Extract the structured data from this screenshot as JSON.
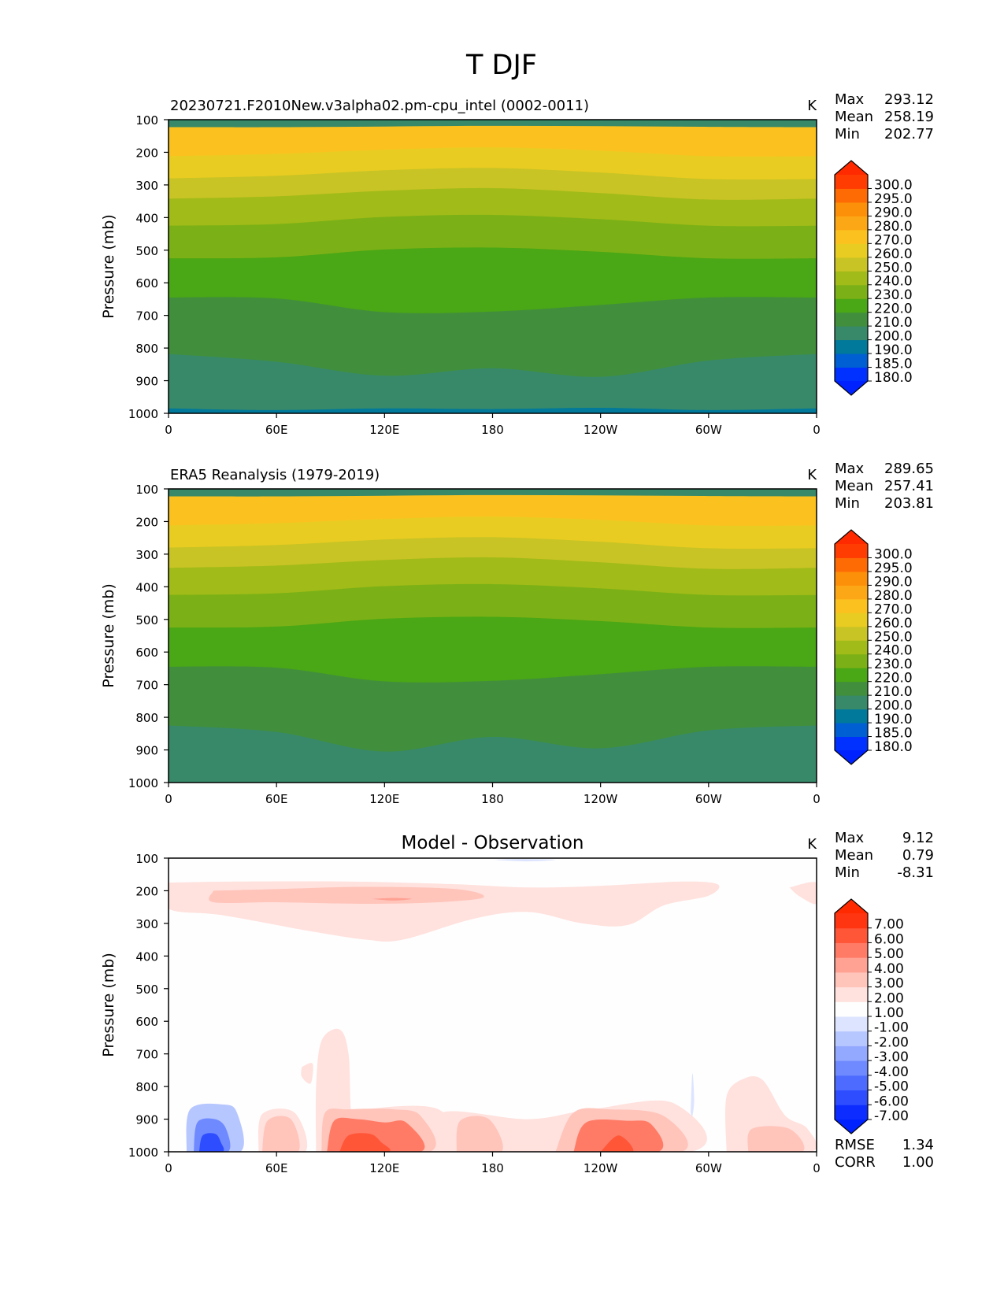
{
  "figure_title": "T DJF",
  "colors": {
    "abs_levels": [
      "#0031ff",
      "#005fd2",
      "#00799a",
      "#37896a",
      "#418f3c",
      "#4aa715",
      "#7bb116",
      "#a1bb18",
      "#c8c425",
      "#e9cc21",
      "#fbc21f",
      "#fca716",
      "#fd9009",
      "#fe6b05",
      "#ff3d02"
    ],
    "abs_over": "#ff2a00",
    "abs_under": "#0022ff",
    "diff_levels": [
      "#0d2cff",
      "#2d4dff",
      "#4d6bff",
      "#6f8aff",
      "#93a8ff",
      "#b6c6ff",
      "#dce4ff",
      "#fefefe",
      "#ffe1dd",
      "#ffc4ba",
      "#ffa193",
      "#ff7b66",
      "#ff5638",
      "#ff3410"
    ],
    "diff_over": "#ff2a00",
    "diff_under": "#0022ff"
  },
  "chart_data": [
    {
      "type": "contourf",
      "title": "20230721.F2010New.v3alpha02.pm-cpu_intel (0002-0011)",
      "units": "K",
      "stats": [
        {
          "label": "Max",
          "value": "293.12"
        },
        {
          "label": "Mean",
          "value": "258.19"
        },
        {
          "label": "Min",
          "value": "202.77"
        }
      ],
      "ylabel": "Pressure (mb)",
      "y_ticks": [
        "100",
        "200",
        "300",
        "400",
        "500",
        "600",
        "700",
        "800",
        "900",
        "1000"
      ],
      "x_ticks": [
        "0",
        "60E",
        "120E",
        "180",
        "120W",
        "60W",
        "0"
      ],
      "x_range": [
        0,
        360
      ],
      "y_range": [
        100,
        1000
      ],
      "colorbar_labels": [
        "300.0",
        "295.0",
        "290.0",
        "280.0",
        "270.0",
        "260.0",
        "250.0",
        "240.0",
        "230.0",
        "220.0",
        "210.0",
        "200.0",
        "190.0",
        "185.0",
        "180.0"
      ],
      "contour_boundaries": [
        {
          "level_index": 10,
          "pressure": [
            123,
            123,
            121,
            119,
            120,
            122,
            123
          ]
        },
        {
          "level_index": 9,
          "pressure": [
            212,
            205,
            192,
            185,
            195,
            212,
            212
          ]
        },
        {
          "level_index": 8,
          "pressure": [
            280,
            272,
            255,
            248,
            262,
            282,
            282
          ]
        },
        {
          "level_index": 7,
          "pressure": [
            342,
            335,
            318,
            310,
            325,
            345,
            342
          ]
        },
        {
          "level_index": 6,
          "pressure": [
            425,
            420,
            398,
            392,
            405,
            425,
            425
          ]
        },
        {
          "level_index": 5,
          "pressure": [
            525,
            522,
            498,
            492,
            505,
            525,
            525
          ]
        },
        {
          "level_index": 4,
          "pressure": [
            645,
            648,
            690,
            688,
            668,
            645,
            645
          ]
        },
        {
          "level_index": 3,
          "pressure": [
            818,
            842,
            885,
            862,
            888,
            838,
            818
          ]
        },
        {
          "level_index": 2,
          "pressure": [
            985,
            990,
            985,
            987,
            983,
            990,
            985
          ]
        }
      ]
    },
    {
      "type": "contourf",
      "title": "ERA5 Reanalysis (1979-2019)",
      "units": "K",
      "stats": [
        {
          "label": "Max",
          "value": "289.65"
        },
        {
          "label": "Mean",
          "value": "257.41"
        },
        {
          "label": "Min",
          "value": "203.81"
        }
      ],
      "ylabel": "Pressure (mb)",
      "y_ticks": [
        "100",
        "200",
        "300",
        "400",
        "500",
        "600",
        "700",
        "800",
        "900",
        "1000"
      ],
      "x_ticks": [
        "0",
        "60E",
        "120E",
        "180",
        "120W",
        "60W",
        "0"
      ],
      "x_range": [
        0,
        360
      ],
      "y_range": [
        100,
        1000
      ],
      "colorbar_labels": [
        "300.0",
        "295.0",
        "290.0",
        "280.0",
        "270.0",
        "260.0",
        "250.0",
        "240.0",
        "230.0",
        "220.0",
        "210.0",
        "200.0",
        "190.0",
        "185.0",
        "180.0"
      ],
      "contour_boundaries": [
        {
          "level_index": 10,
          "pressure": [
            123,
            123,
            121,
            119,
            120,
            122,
            123
          ]
        },
        {
          "level_index": 9,
          "pressure": [
            212,
            205,
            192,
            185,
            195,
            212,
            212
          ]
        },
        {
          "level_index": 8,
          "pressure": [
            280,
            272,
            255,
            248,
            262,
            282,
            282
          ]
        },
        {
          "level_index": 7,
          "pressure": [
            342,
            335,
            318,
            310,
            325,
            345,
            342
          ]
        },
        {
          "level_index": 6,
          "pressure": [
            425,
            420,
            398,
            392,
            405,
            425,
            425
          ]
        },
        {
          "level_index": 5,
          "pressure": [
            525,
            522,
            498,
            492,
            505,
            525,
            525
          ]
        },
        {
          "level_index": 4,
          "pressure": [
            645,
            648,
            690,
            688,
            668,
            645,
            645
          ]
        },
        {
          "level_index": 3,
          "pressure": [
            825,
            845,
            905,
            860,
            895,
            840,
            825
          ]
        }
      ]
    },
    {
      "type": "contourf",
      "title": "Model - Observation",
      "units": "K",
      "stats": [
        {
          "label": "Max",
          "value": "9.12"
        },
        {
          "label": "Mean",
          "value": "0.79"
        },
        {
          "label": "Min",
          "value": "-8.31"
        }
      ],
      "extra_stats": [
        {
          "label": "RMSE",
          "value": "1.34"
        },
        {
          "label": "CORR",
          "value": "1.00"
        }
      ],
      "ylabel": "Pressure (mb)",
      "y_ticks": [
        "100",
        "200",
        "300",
        "400",
        "500",
        "600",
        "700",
        "800",
        "900",
        "1000"
      ],
      "x_ticks": [
        "0",
        "60E",
        "120E",
        "180",
        "120W",
        "60W",
        "0"
      ],
      "x_range": [
        0,
        360
      ],
      "y_range": [
        100,
        1000
      ],
      "colorbar_labels": [
        "7.00",
        "6.00",
        "5.00",
        "4.00",
        "3.00",
        "2.00",
        "1.00",
        "-1.00",
        "-2.00",
        "-3.00",
        "-4.00",
        "-5.00",
        "-6.00",
        "-7.00"
      ],
      "anomaly_regions": [
        {
          "level_index": 8,
          "polygon": [
            [
              0,
              175
            ],
            [
              40,
              172
            ],
            [
              100,
              172
            ],
            [
              160,
              180
            ],
            [
              200,
              190
            ],
            [
              240,
              185
            ],
            [
              285,
              172
            ],
            [
              305,
              180
            ],
            [
              300,
              215
            ],
            [
              275,
              245
            ],
            [
              255,
              305
            ],
            [
              230,
              300
            ],
            [
              200,
              265
            ],
            [
              170,
              285
            ],
            [
              130,
              350
            ],
            [
              110,
              350
            ],
            [
              80,
              325
            ],
            [
              30,
              275
            ],
            [
              0,
              255
            ]
          ]
        },
        {
          "level_index": 8,
          "polygon": [
            [
              345,
              190
            ],
            [
              360,
              175
            ],
            [
              360,
              240
            ],
            [
              350,
              215
            ]
          ]
        },
        {
          "level_index": 9,
          "polygon": [
            [
              25,
              200
            ],
            [
              60,
              195
            ],
            [
              110,
              188
            ],
            [
              160,
              195
            ],
            [
              175,
              220
            ],
            [
              150,
              235
            ],
            [
              110,
              240
            ],
            [
              60,
              235
            ],
            [
              25,
              235
            ]
          ]
        },
        {
          "level_index": 10,
          "polygon": [
            [
              113,
              225
            ],
            [
              125,
              222
            ],
            [
              135,
              225
            ],
            [
              125,
              230
            ]
          ]
        },
        {
          "level_index": 6,
          "polygon": [
            [
              180,
              105
            ],
            [
              195,
              103
            ],
            [
              215,
              105
            ],
            [
              200,
              110
            ]
          ]
        },
        {
          "level_index": 8,
          "polygon": [
            [
              82,
              1000
            ],
            [
              82,
              800
            ],
            [
              85,
              660
            ],
            [
              95,
              625
            ],
            [
              100,
              700
            ],
            [
              102,
              900
            ],
            [
              110,
              870
            ],
            [
              150,
              870
            ],
            [
              158,
              1000
            ]
          ]
        },
        {
          "level_index": 8,
          "polygon": [
            [
              74,
              740
            ],
            [
              80,
              730
            ],
            [
              79,
              790
            ],
            [
              74,
              770
            ]
          ]
        },
        {
          "level_index": 8,
          "polygon": [
            [
              50,
              1000
            ],
            [
              52,
              885
            ],
            [
              70,
              880
            ],
            [
              76,
              1000
            ]
          ]
        },
        {
          "level_index": 8,
          "polygon": [
            [
              150,
              1000
            ],
            [
              152,
              880
            ],
            [
              200,
              900
            ],
            [
              235,
              870
            ],
            [
              280,
              850
            ],
            [
              290,
              1000
            ]
          ]
        },
        {
          "level_index": 8,
          "polygon": [
            [
              310,
              1000
            ],
            [
              310,
              830
            ],
            [
              320,
              775
            ],
            [
              330,
              780
            ],
            [
              340,
              870
            ],
            [
              345,
              900
            ],
            [
              355,
              930
            ],
            [
              357,
              1000
            ]
          ]
        },
        {
          "level_index": 9,
          "polygon": [
            [
              85,
              1000
            ],
            [
              87,
              880
            ],
            [
              100,
              870
            ],
            [
              125,
              870
            ],
            [
              140,
              890
            ],
            [
              145,
              1000
            ]
          ]
        },
        {
          "level_index": 9,
          "polygon": [
            [
              215,
              1000
            ],
            [
              225,
              880
            ],
            [
              245,
              870
            ],
            [
              275,
              890
            ],
            [
              285,
              1000
            ]
          ]
        },
        {
          "level_index": 9,
          "polygon": [
            [
              52,
              1000
            ],
            [
              55,
              905
            ],
            [
              68,
              900
            ],
            [
              72,
              1000
            ]
          ]
        },
        {
          "level_index": 9,
          "polygon": [
            [
              160,
              1000
            ],
            [
              162,
              905
            ],
            [
              178,
              900
            ],
            [
              185,
              1000
            ]
          ]
        },
        {
          "level_index": 9,
          "polygon": [
            [
              322,
              1000
            ],
            [
              324,
              930
            ],
            [
              345,
              930
            ],
            [
              352,
              1000
            ]
          ]
        },
        {
          "level_index": 11,
          "polygon": [
            [
              88,
              1000
            ],
            [
              92,
              905
            ],
            [
              105,
              900
            ],
            [
              120,
              910
            ],
            [
              132,
              910
            ],
            [
              140,
              1000
            ]
          ]
        },
        {
          "level_index": 11,
          "polygon": [
            [
              225,
              1000
            ],
            [
              232,
              910
            ],
            [
              255,
              905
            ],
            [
              268,
              915
            ],
            [
              272,
              1000
            ]
          ]
        },
        {
          "level_index": 12,
          "polygon": [
            [
              95,
              1000
            ],
            [
              100,
              950
            ],
            [
              112,
              945
            ],
            [
              118,
              970
            ],
            [
              122,
              1000
            ]
          ]
        },
        {
          "level_index": 12,
          "polygon": [
            [
              240,
              1000
            ],
            [
              250,
              950
            ],
            [
              258,
              1000
            ]
          ]
        },
        {
          "level_index": 5,
          "polygon": [
            [
              10,
              1000
            ],
            [
              12,
              870
            ],
            [
              30,
              855
            ],
            [
              38,
              880
            ],
            [
              40,
              1000
            ]
          ]
        },
        {
          "level_index": 3,
          "polygon": [
            [
              14,
              1000
            ],
            [
              16,
              910
            ],
            [
              26,
              900
            ],
            [
              32,
              930
            ],
            [
              33,
              1000
            ]
          ]
        },
        {
          "level_index": 1,
          "polygon": [
            [
              17,
              1000
            ],
            [
              19,
              950
            ],
            [
              26,
              945
            ],
            [
              29,
              970
            ],
            [
              30,
              1000
            ]
          ]
        },
        {
          "level_index": 6,
          "polygon": [
            [
              290,
              880
            ],
            [
              291,
              760
            ],
            [
              292,
              840
            ],
            [
              291,
              890
            ]
          ]
        }
      ]
    }
  ]
}
